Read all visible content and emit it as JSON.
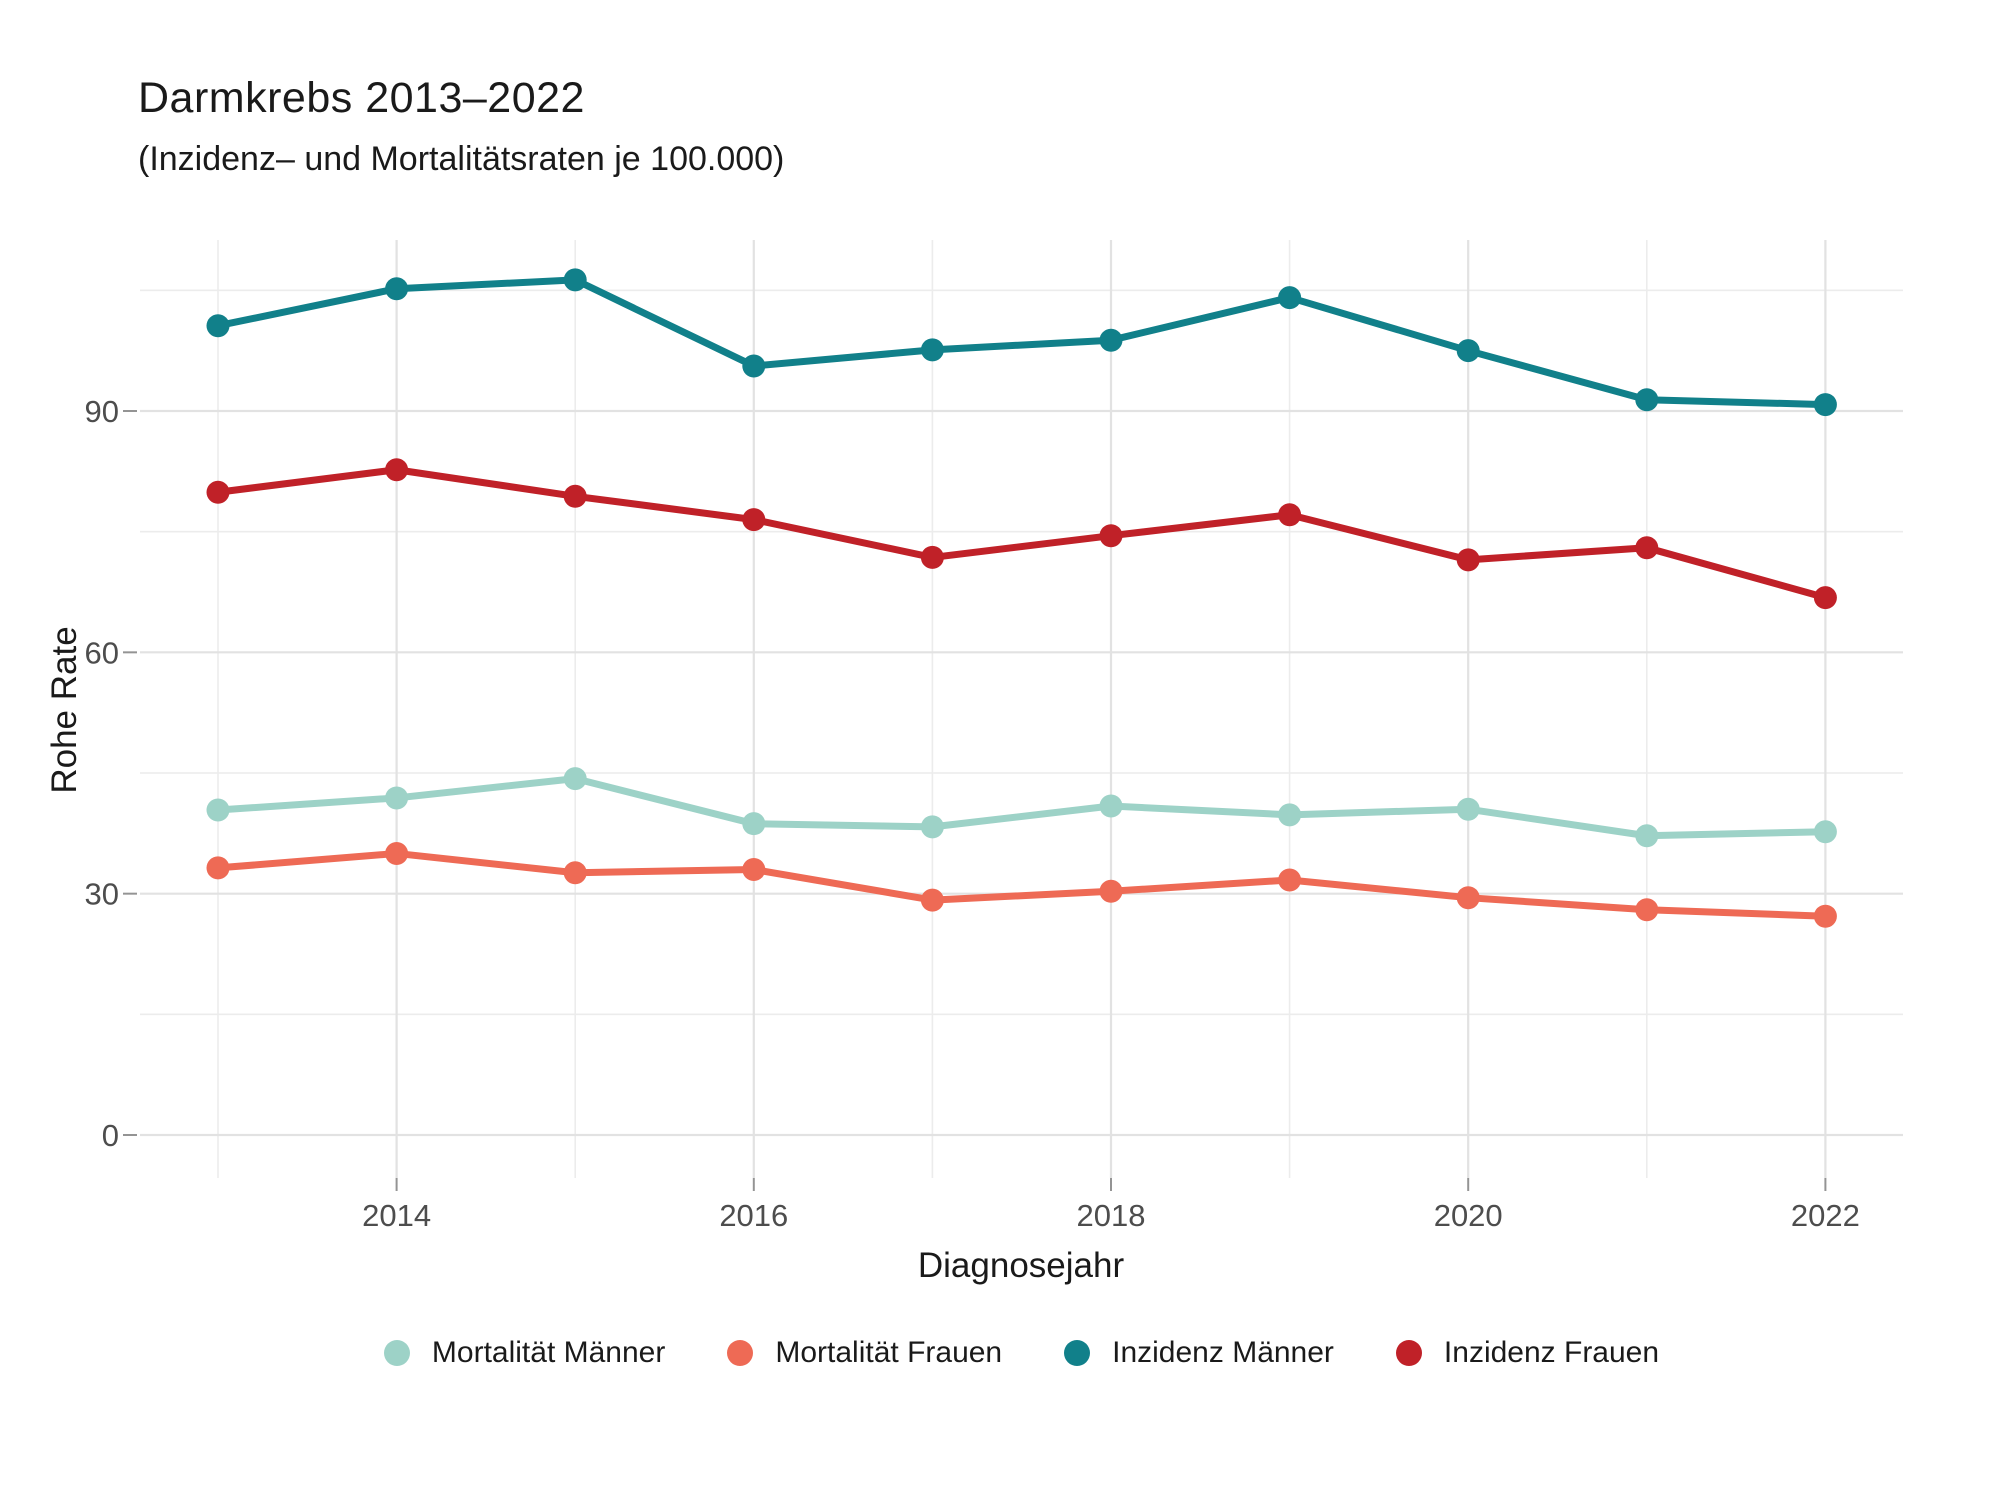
{
  "chart": {
    "title": "Darmkrebs 2013–2022",
    "subtitle": "(Inzidenz– und Mortalitätsraten je 100.000)"
  },
  "chart_data": {
    "type": "line",
    "x": [
      2013,
      2014,
      2015,
      2016,
      2017,
      2018,
      2019,
      2020,
      2021,
      2022
    ],
    "xlabel": "Diagnosejahr",
    "ylabel": "Rohe Rate",
    "ylim": [
      -3,
      116
    ],
    "xlim": [
      2012.6,
      2022.45
    ],
    "grid": "major+minor",
    "legend_position": "bottom",
    "yticks_major": [
      0,
      30,
      60,
      90
    ],
    "yticks_minor": [
      15,
      45,
      75,
      105
    ],
    "xticks_major": [
      2014,
      2016,
      2018,
      2020,
      2022
    ],
    "xticks_minor": [
      2013,
      2015,
      2017,
      2019,
      2021
    ],
    "series": [
      {
        "name": "Mortalität Männer",
        "color": "#9dd2c7",
        "values": [
          40.4,
          41.9,
          44.3,
          38.7,
          38.3,
          40.9,
          39.8,
          40.5,
          37.2,
          37.7
        ]
      },
      {
        "name": "Mortalität Frauen",
        "color": "#ee6a55",
        "values": [
          33.2,
          35.0,
          32.6,
          33.0,
          29.2,
          30.3,
          31.7,
          29.5,
          28.0,
          27.2
        ]
      },
      {
        "name": "Inzidenz Männer",
        "color": "#11808a",
        "values": [
          100.6,
          105.2,
          106.3,
          95.6,
          97.6,
          98.8,
          104.1,
          97.5,
          91.4,
          90.8
        ]
      },
      {
        "name": "Inzidenz Frauen",
        "color": "#c02128",
        "values": [
          79.9,
          82.7,
          79.4,
          76.5,
          71.8,
          74.5,
          77.1,
          71.5,
          73.0,
          66.8
        ]
      }
    ]
  },
  "style": {
    "grid_major_color": "#e2e2e2",
    "grid_minor_color": "#ececec",
    "tick_mark_color": "#949494",
    "tick_label_color": "#4d4d4d",
    "background": "#ffffff"
  }
}
